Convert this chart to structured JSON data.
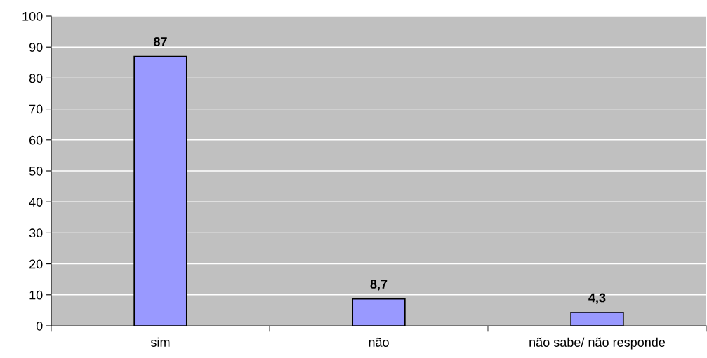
{
  "chart_data": {
    "type": "bar",
    "categories": [
      "sim",
      "não",
      "não sabe/ não responde"
    ],
    "series": [
      {
        "color": "#9999ff",
        "values": [
          87,
          8.7,
          4.3
        ],
        "value_labels": [
          "87",
          "8,7",
          "4,3"
        ]
      }
    ],
    "ylim": [
      0,
      100
    ],
    "yticks": [
      0,
      10,
      20,
      30,
      40,
      50,
      60,
      70,
      80,
      90,
      100
    ],
    "grid": "y"
  }
}
